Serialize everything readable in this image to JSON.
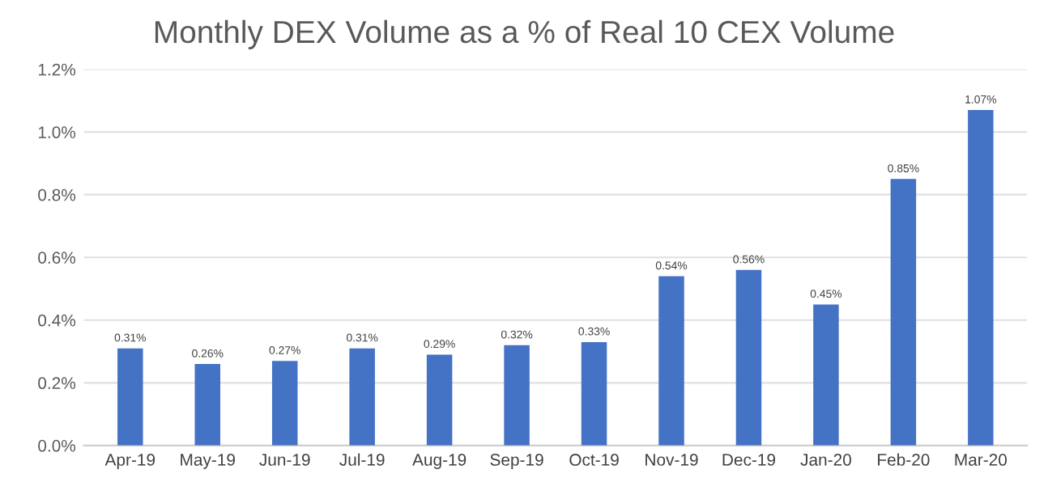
{
  "chart_data": {
    "type": "bar",
    "title": "Monthly DEX Volume as a % of Real 10 CEX Volume",
    "categories": [
      "Apr-19",
      "May-19",
      "Jun-19",
      "Jul-19",
      "Aug-19",
      "Sep-19",
      "Oct-19",
      "Nov-19",
      "Dec-19",
      "Jan-20",
      "Feb-20",
      "Mar-20"
    ],
    "values": [
      0.31,
      0.26,
      0.27,
      0.31,
      0.29,
      0.32,
      0.33,
      0.54,
      0.56,
      0.45,
      0.85,
      1.07
    ],
    "value_labels": [
      "0.31%",
      "0.26%",
      "0.27%",
      "0.31%",
      "0.29%",
      "0.32%",
      "0.33%",
      "0.54%",
      "0.56%",
      "0.45%",
      "0.85%",
      "1.07%"
    ],
    "color": "#4472c4",
    "ylim": [
      0,
      1.2
    ],
    "yticks": [
      {
        "value": 0,
        "label": "0.0%"
      },
      {
        "value": 0.2,
        "label": "0.2%"
      },
      {
        "value": 0.4,
        "label": "0.4%"
      },
      {
        "value": 0.6,
        "label": "0.6%"
      },
      {
        "value": 0.8,
        "label": "0.8%"
      },
      {
        "value": 1.0,
        "label": "1.0%"
      },
      {
        "value": 1.2,
        "label": "1.2%"
      }
    ],
    "grid": "y"
  }
}
